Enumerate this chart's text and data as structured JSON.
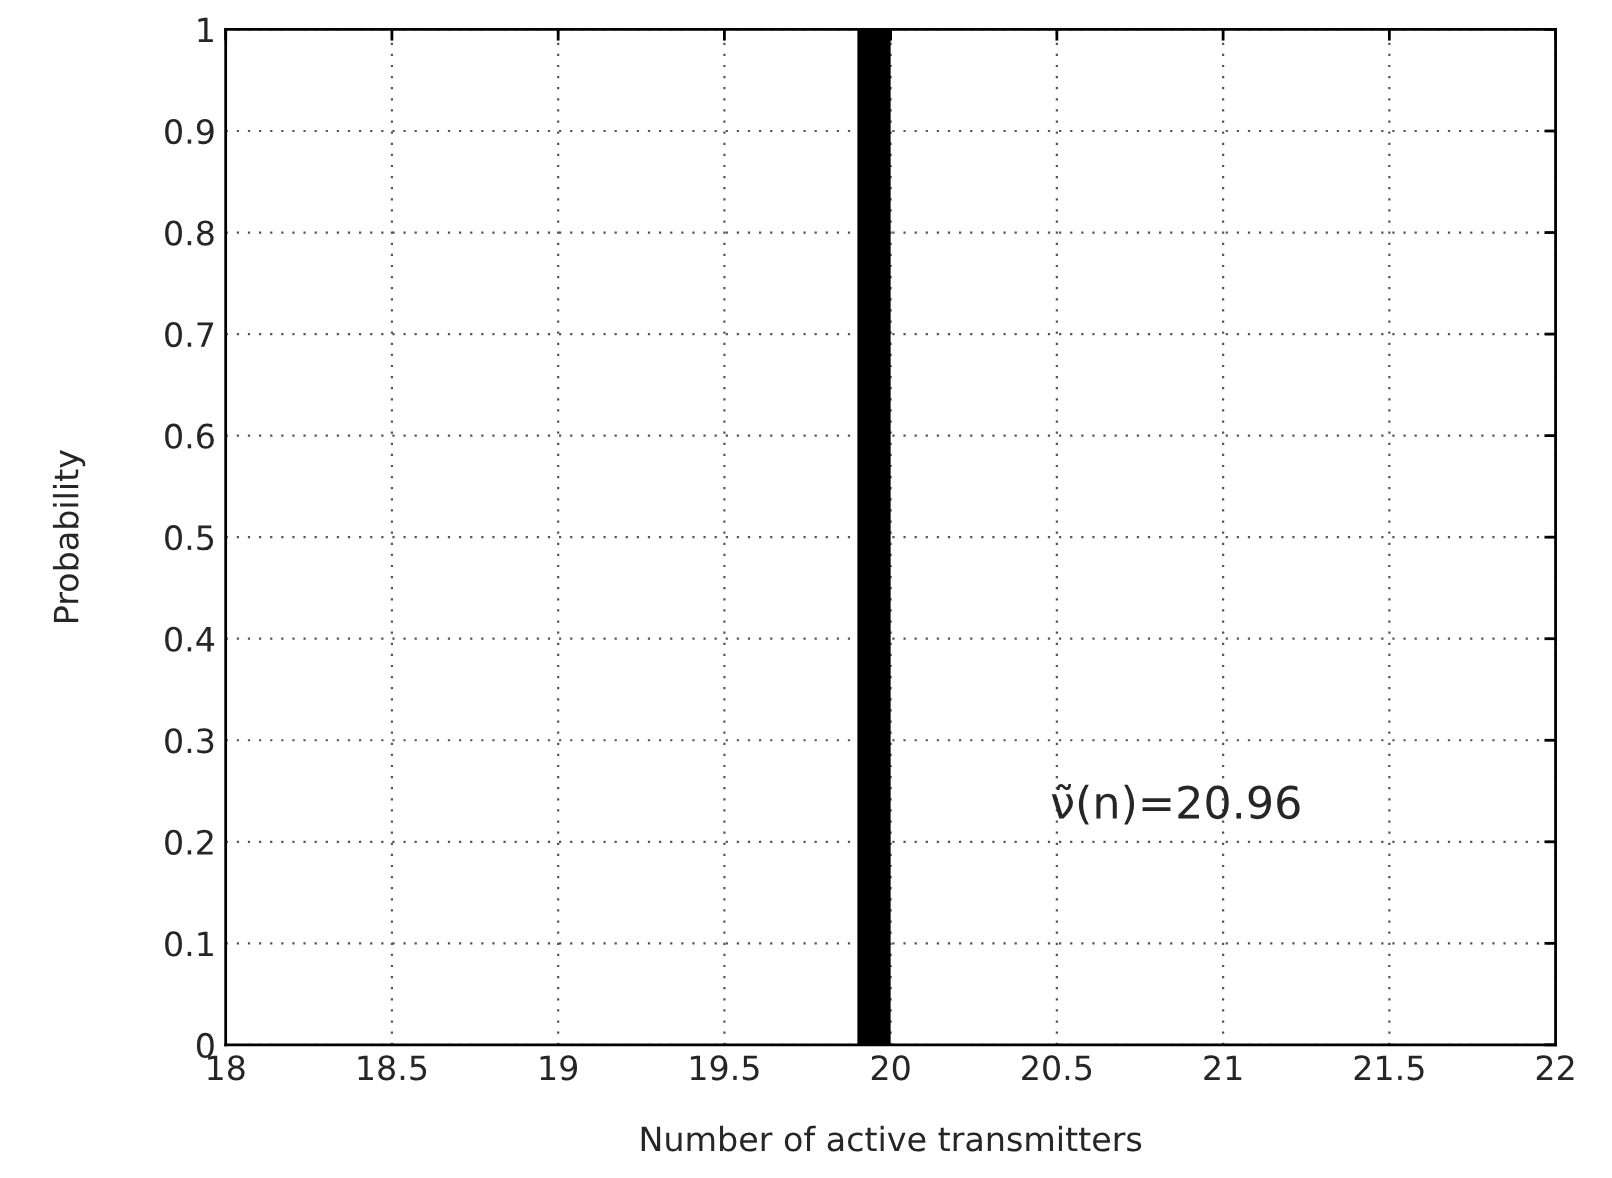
{
  "chart_data": {
    "type": "bar",
    "xlabel": "Number of active transmitters",
    "ylabel": "Probability",
    "x": [
      19.95
    ],
    "values": [
      1
    ],
    "color": "#000000",
    "xlim": [
      18,
      22
    ],
    "xticks": [
      18,
      18.5,
      19,
      19.5,
      20,
      20.5,
      21,
      21.5,
      22
    ],
    "ylim": [
      0,
      1
    ],
    "yticks": [
      0,
      0.1,
      0.2,
      0.3,
      0.4,
      0.5,
      0.6,
      0.7,
      0.8,
      0.9,
      1
    ],
    "grid": true,
    "annotations": [
      "ν̃(n)=20.96"
    ]
  }
}
